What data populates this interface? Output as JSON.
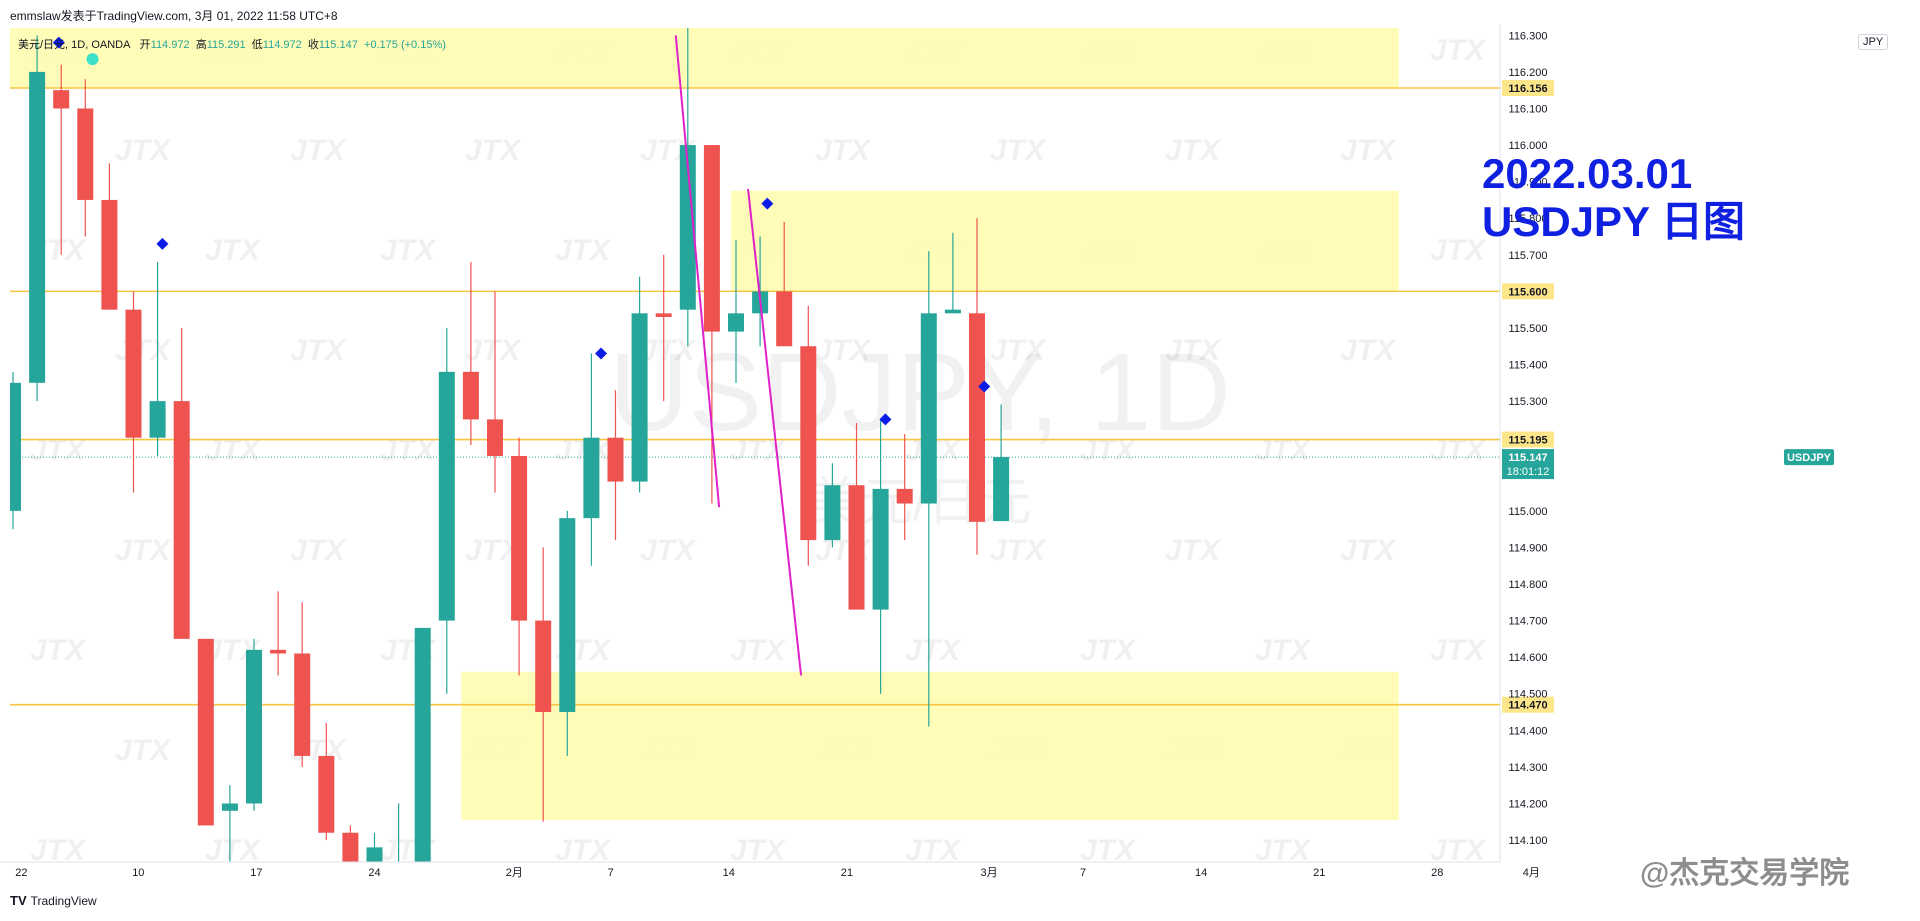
{
  "header": {
    "publisher_line": "emmslaw发表于TradingView.com, 3月 01, 2022 11:58 UTC+8",
    "symbol_line": "美元/日元, 1D, OANDA",
    "open_label": "开",
    "open_value": "114.972",
    "high_label": "高",
    "high_value": "115.291",
    "low_label": "低",
    "low_value": "114.972",
    "close_label": "收",
    "close_value": "115.147",
    "change": "+0.175 (+0.15%)"
  },
  "overlay": {
    "title_line1": "2022.03.01",
    "title_line2": "USDJPY 日图"
  },
  "watermark": {
    "main": "USDJPY, 1D",
    "sub": "美元/日元",
    "logo": "JTX"
  },
  "currency_button": "JPY",
  "footer": {
    "logo": "TV",
    "label": "TradingView"
  },
  "brand": "@杰克交易学院",
  "colors": {
    "up": "#26a69a",
    "down": "#ef5350",
    "level": "#f5c542",
    "zone": "#fffcb0",
    "magenta": "#e020c8",
    "marker": "#0b1ce6",
    "overlay_text": "#1020e0"
  },
  "chart_data": {
    "type": "candlestick",
    "y_axis": {
      "min": 114.04,
      "max": 116.32,
      "ticks": [
        "114.100",
        "114.200",
        "114.300",
        "114.400",
        "114.500",
        "114.600",
        "114.700",
        "114.800",
        "114.900",
        "115.000",
        "115.100",
        "115.200",
        "115.300",
        "115.400",
        "115.500",
        "115.600",
        "115.700",
        "115.800",
        "115.900",
        "116.000",
        "116.100",
        "116.200",
        "116.300"
      ]
    },
    "x_axis": {
      "labels": [
        {
          "label": "22",
          "index": 0.35
        },
        {
          "label": "10",
          "index": 5.2
        },
        {
          "label": "17",
          "index": 10.1
        },
        {
          "label": "24",
          "index": 15
        },
        {
          "label": "2月",
          "index": 20.8
        },
        {
          "label": "7",
          "index": 24.8
        },
        {
          "label": "14",
          "index": 29.7
        },
        {
          "label": "21",
          "index": 34.6
        },
        {
          "label": "3月",
          "index": 40.5
        },
        {
          "label": "7",
          "index": 44.4
        },
        {
          "label": "14",
          "index": 49.3
        },
        {
          "label": "21",
          "index": 54.2
        },
        {
          "label": "28",
          "index": 59.1
        },
        {
          "label": "4月",
          "index": 63
        }
      ]
    },
    "candles": [
      {
        "o": 115.0,
        "h": 115.38,
        "l": 114.95,
        "c": 115.35
      },
      {
        "o": 115.35,
        "h": 116.3,
        "l": 115.3,
        "c": 116.2
      },
      {
        "o": 116.15,
        "h": 116.22,
        "l": 115.7,
        "c": 116.1
      },
      {
        "o": 116.1,
        "h": 116.18,
        "l": 115.75,
        "c": 115.85
      },
      {
        "o": 115.85,
        "h": 115.95,
        "l": 115.55,
        "c": 115.55
      },
      {
        "o": 115.55,
        "h": 115.6,
        "l": 115.05,
        "c": 115.2
      },
      {
        "o": 115.2,
        "h": 115.68,
        "l": 115.15,
        "c": 115.3
      },
      {
        "o": 115.3,
        "h": 115.5,
        "l": 114.65,
        "c": 114.65
      },
      {
        "o": 114.65,
        "h": 114.65,
        "l": 114.14,
        "c": 114.14
      },
      {
        "o": 114.18,
        "h": 114.25,
        "l": 114.04,
        "c": 114.2
      },
      {
        "o": 114.2,
        "h": 114.65,
        "l": 114.18,
        "c": 114.62
      },
      {
        "o": 114.62,
        "h": 114.78,
        "l": 114.55,
        "c": 114.61
      },
      {
        "o": 114.61,
        "h": 114.75,
        "l": 114.3,
        "c": 114.33
      },
      {
        "o": 114.33,
        "h": 114.42,
        "l": 114.1,
        "c": 114.12
      },
      {
        "o": 114.12,
        "h": 114.14,
        "l": 114.04,
        "c": 114.04
      },
      {
        "o": 114.04,
        "h": 114.12,
        "l": 114.04,
        "c": 114.08
      },
      {
        "o": 114.04,
        "h": 114.2,
        "l": 114.04,
        "c": 114.04
      },
      {
        "o": 114.04,
        "h": 114.68,
        "l": 114.04,
        "c": 114.68
      },
      {
        "o": 114.7,
        "h": 115.5,
        "l": 114.5,
        "c": 115.38
      },
      {
        "o": 115.38,
        "h": 115.68,
        "l": 115.18,
        "c": 115.25
      },
      {
        "o": 115.25,
        "h": 115.6,
        "l": 115.05,
        "c": 115.15
      },
      {
        "o": 115.15,
        "h": 115.2,
        "l": 114.55,
        "c": 114.7
      },
      {
        "o": 114.7,
        "h": 114.9,
        "l": 114.15,
        "c": 114.45
      },
      {
        "o": 114.45,
        "h": 115.0,
        "l": 114.33,
        "c": 114.98
      },
      {
        "o": 114.98,
        "h": 115.43,
        "l": 114.85,
        "c": 115.2
      },
      {
        "o": 115.2,
        "h": 115.33,
        "l": 114.92,
        "c": 115.08
      },
      {
        "o": 115.08,
        "h": 115.64,
        "l": 115.05,
        "c": 115.54
      },
      {
        "o": 115.54,
        "h": 115.7,
        "l": 115.3,
        "c": 115.53
      },
      {
        "o": 115.55,
        "h": 116.32,
        "l": 115.45,
        "c": 116.0
      },
      {
        "o": 116.0,
        "h": 116.0,
        "l": 115.02,
        "c": 115.49
      },
      {
        "o": 115.49,
        "h": 115.74,
        "l": 115.35,
        "c": 115.54
      },
      {
        "o": 115.54,
        "h": 115.75,
        "l": 115.45,
        "c": 115.6
      },
      {
        "o": 115.6,
        "h": 115.79,
        "l": 115.45,
        "c": 115.45
      },
      {
        "o": 115.45,
        "h": 115.56,
        "l": 114.85,
        "c": 114.92
      },
      {
        "o": 114.92,
        "h": 115.13,
        "l": 114.9,
        "c": 115.07
      },
      {
        "o": 115.07,
        "h": 115.24,
        "l": 114.73,
        "c": 114.73
      },
      {
        "o": 114.73,
        "h": 115.25,
        "l": 114.5,
        "c": 115.06
      },
      {
        "o": 115.06,
        "h": 115.21,
        "l": 114.92,
        "c": 115.02
      },
      {
        "o": 115.02,
        "h": 115.71,
        "l": 114.41,
        "c": 115.54
      },
      {
        "o": 115.54,
        "h": 115.76,
        "l": 115.54,
        "c": 115.55
      },
      {
        "o": 115.54,
        "h": 115.8,
        "l": 114.88,
        "c": 114.97
      },
      {
        "o": 114.972,
        "h": 115.291,
        "l": 114.972,
        "c": 115.147
      }
    ],
    "horizontal_levels": [
      {
        "price": 116.156,
        "label": "116.156"
      },
      {
        "price": 115.6,
        "label": "115.600"
      },
      {
        "price": 115.195,
        "label": "115.195"
      },
      {
        "price": 114.47,
        "label": "114.470"
      }
    ],
    "last_price": {
      "symbol": "USDJPY",
      "value": "115.147",
      "countdown": "18:01:12"
    },
    "zones": [
      {
        "from_index": -0.2,
        "to_index": 57.5,
        "price_top": 116.32,
        "price_bottom": 116.156
      },
      {
        "from_index": 29.8,
        "to_index": 57.5,
        "price_top": 115.875,
        "price_bottom": 115.6
      },
      {
        "from_index": 18.6,
        "to_index": 57.5,
        "price_top": 114.56,
        "price_bottom": 114.155
      }
    ],
    "magenta_lines": [
      {
        "from_index": 27.5,
        "from_price": 116.3,
        "to_index": 29.3,
        "to_price": 115.01
      },
      {
        "from_index": 30.5,
        "from_price": 115.88,
        "to_index": 32.7,
        "to_price": 114.55
      }
    ],
    "markers": [
      {
        "index": 1.9,
        "price": 116.28
      },
      {
        "index": 6.2,
        "price": 115.73
      },
      {
        "index": 24.4,
        "price": 115.43
      },
      {
        "index": 31.3,
        "price": 115.84
      },
      {
        "index": 36.2,
        "price": 115.25
      },
      {
        "index": 40.3,
        "price": 115.34
      }
    ],
    "dot_marker": {
      "index": 3.3,
      "price": 116.235
    }
  }
}
